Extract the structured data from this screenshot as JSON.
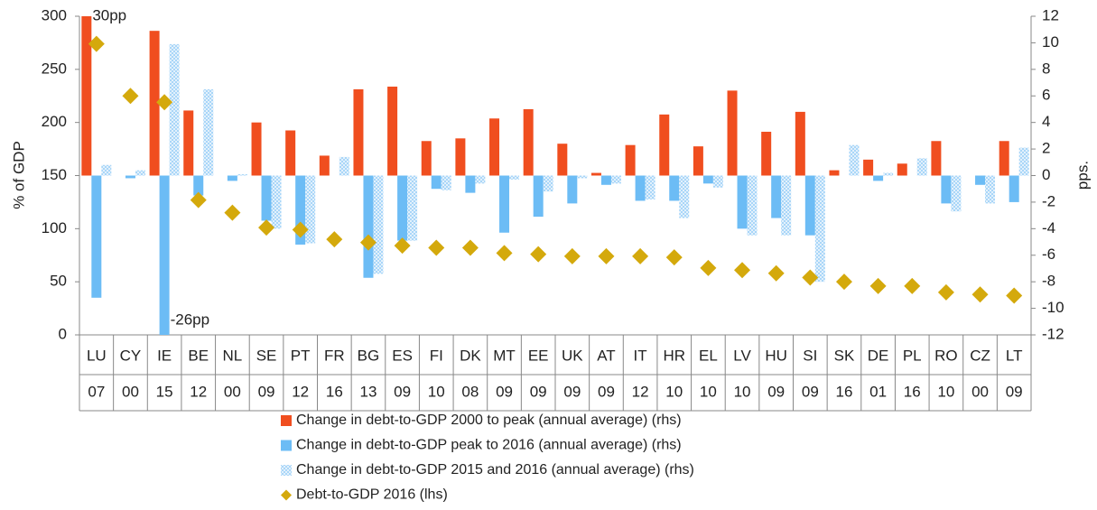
{
  "chart_data": {
    "type": "bar",
    "categories": [
      "LU",
      "CY",
      "IE",
      "BE",
      "NL",
      "SE",
      "PT",
      "FR",
      "BG",
      "ES",
      "FI",
      "DK",
      "MT",
      "EE",
      "UK",
      "AT",
      "IT",
      "HR",
      "EL",
      "LV",
      "HU",
      "SI",
      "SK",
      "DE",
      "PL",
      "RO",
      "CZ",
      "LT"
    ],
    "sublabels": [
      "07",
      "00",
      "15",
      "12",
      "00",
      "09",
      "12",
      "16",
      "13",
      "09",
      "10",
      "08",
      "09",
      "09",
      "09",
      "09",
      "12",
      "10",
      "10",
      "10",
      "09",
      "09",
      "16",
      "01",
      "16",
      "10",
      "00",
      "09"
    ],
    "ylabel": "% of GDP",
    "y2label": "pps.",
    "ylim": [
      0,
      300
    ],
    "yticks": [
      0,
      50,
      100,
      150,
      200,
      250,
      300
    ],
    "y2lim": [
      -12,
      12
    ],
    "y2ticks": [
      -12,
      -10,
      -8,
      -6,
      -4,
      -2,
      0,
      2,
      4,
      6,
      8,
      10,
      12
    ],
    "series": [
      {
        "name": "Change in debt-to-GDP 2000 to peak (annual average) (rhs)",
        "color": "#f04e1f",
        "axis": "y2",
        "type": "bar",
        "values": [
          30,
          null,
          10.9,
          4.9,
          null,
          4.0,
          3.4,
          1.5,
          6.5,
          6.7,
          2.6,
          2.8,
          4.3,
          5.0,
          2.4,
          0.2,
          2.3,
          4.6,
          2.2,
          6.4,
          3.3,
          4.8,
          0.4,
          1.2,
          0.9,
          2.6,
          null,
          2.6
        ],
        "value_labels": [
          "30pp",
          null,
          null,
          null,
          null,
          null,
          null,
          null,
          null,
          null,
          null,
          null,
          null,
          null,
          null,
          null,
          null,
          null,
          null,
          null,
          null,
          null,
          null,
          null,
          null,
          null,
          null,
          null
        ]
      },
      {
        "name": "Change in debt-to-GDP peak to 2016 (annual average) (rhs)",
        "color": "#6cbcf5",
        "axis": "y2",
        "type": "bar",
        "values": [
          -9.2,
          -0.2,
          -26,
          -1.5,
          -0.4,
          -3.4,
          -5.2,
          null,
          -7.7,
          -4.9,
          -1.0,
          -1.3,
          -4.3,
          -3.1,
          -2.1,
          -0.7,
          -1.9,
          -1.9,
          -0.6,
          -4.0,
          -3.2,
          -4.5,
          null,
          -0.4,
          null,
          -2.1,
          -0.7,
          -2.0
        ],
        "value_labels": [
          null,
          null,
          "-26pp",
          null,
          null,
          null,
          null,
          null,
          null,
          null,
          null,
          null,
          null,
          null,
          null,
          null,
          null,
          null,
          null,
          null,
          null,
          null,
          null,
          null,
          null,
          null,
          null,
          null
        ]
      },
      {
        "name": "Change in debt-to-GDP 2015 and 2016 (annual average) (rhs)",
        "color": "#a9d6f8",
        "axis": "y2",
        "type": "bar",
        "hatched": true,
        "values": [
          0.8,
          0.4,
          9.9,
          6.5,
          0.1,
          -4.0,
          -5.1,
          1.4,
          -7.4,
          -4.9,
          -1.1,
          -0.6,
          -0.3,
          -1.2,
          -0.2,
          -0.6,
          -1.8,
          -3.2,
          -0.9,
          -4.5,
          -4.5,
          -8.0,
          2.3,
          0.2,
          1.3,
          -2.7,
          -2.1,
          2.1
        ]
      },
      {
        "name": "Debt-to-GDP 2016 (lhs)",
        "color": "#d4a90c",
        "axis": "y",
        "type": "scatter",
        "values": [
          274,
          225,
          219,
          127,
          115,
          101,
          99,
          90,
          87,
          84,
          82,
          82,
          77,
          76,
          74,
          74,
          74,
          73,
          63,
          61,
          58,
          54,
          50,
          46,
          46,
          40,
          38,
          37
        ]
      }
    ]
  }
}
